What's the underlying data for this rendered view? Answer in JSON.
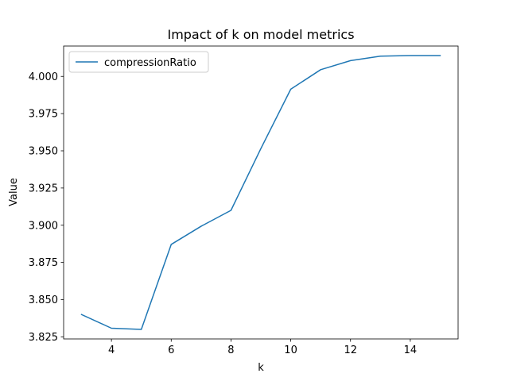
{
  "chart_data": {
    "type": "line",
    "title": "Impact of k on model metrics",
    "xlabel": "k",
    "ylabel": "Value",
    "xlim": [
      2.4,
      15.6
    ],
    "ylim": [
      3.8236,
      4.0204
    ],
    "x_ticks": [
      4,
      6,
      8,
      10,
      12,
      14
    ],
    "y_ticks": [
      3.825,
      3.85,
      3.875,
      3.9,
      3.925,
      3.95,
      3.975,
      4.0
    ],
    "y_tick_labels": [
      "3.825",
      "3.850",
      "3.875",
      "3.900",
      "3.925",
      "3.950",
      "3.975",
      "4.000"
    ],
    "grid": false,
    "legend": {
      "position": "top-left"
    },
    "series": [
      {
        "name": "compressionRatio",
        "color": "#1f77b4",
        "x": [
          3,
          4,
          5,
          6,
          7,
          8,
          9,
          10,
          11,
          12,
          13,
          14,
          15
        ],
        "values": [
          3.84,
          3.8308,
          3.83,
          3.8871,
          3.8993,
          3.91,
          3.9515,
          3.9914,
          4.0045,
          4.0106,
          4.0136,
          4.014,
          4.014
        ]
      }
    ]
  }
}
